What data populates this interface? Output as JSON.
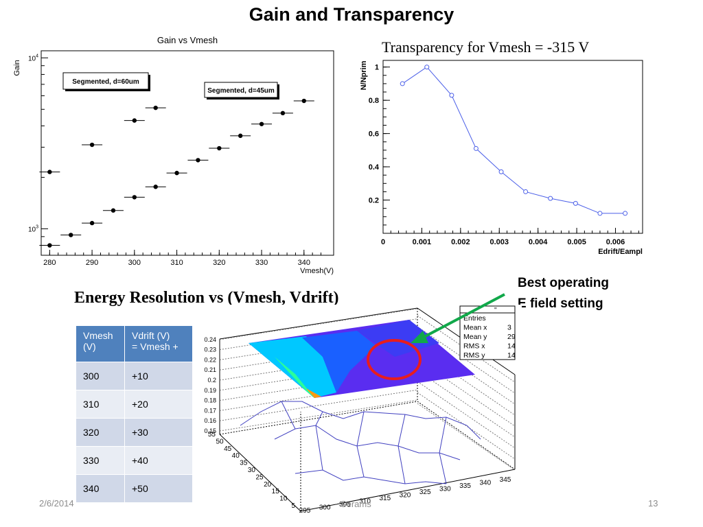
{
  "slide": {
    "title": "Gain  and Transparency",
    "footer_date": "2/6/2014",
    "footer_author": "· Serams",
    "page_number": "13"
  },
  "annotation": {
    "line1": "Best operating",
    "line2": "E field setting",
    "arrow_color": "#11a84a",
    "circle_color": "#e81d1d"
  },
  "chart_data": [
    {
      "type": "scatter",
      "title": "Gain vs Vmesh",
      "xlabel": "Vmesh(V)",
      "ylabel": "Gain",
      "y_scale": "log",
      "xlim": [
        278,
        347
      ],
      "ylim": [
        700,
        11000
      ],
      "x_ticks": [
        280,
        290,
        300,
        310,
        320,
        330,
        340
      ],
      "y_tick_labels": {
        "base": "10",
        "exponents": [
          "3",
          "4"
        ]
      },
      "series": [
        {
          "name": "Segmented, d=60um",
          "x": [
            280,
            290,
            300,
            305
          ],
          "y": [
            2150,
            3100,
            4300,
            5100
          ]
        },
        {
          "name": "Segmented, d=45um",
          "x": [
            280,
            285,
            290,
            295,
            300,
            305,
            310,
            315,
            320,
            325,
            330,
            335,
            340
          ],
          "y": [
            800,
            920,
            1080,
            1280,
            1530,
            1760,
            2120,
            2520,
            2960,
            3500,
            4100,
            4750,
            5600
          ]
        }
      ],
      "marker_color": "#000000"
    },
    {
      "type": "line",
      "title": "Transparency for Vmesh = -315 V",
      "xlabel": "Edrift/Eampl",
      "ylabel": "N/Nprim",
      "xlim": [
        0,
        0.0067
      ],
      "ylim": [
        0,
        1.04
      ],
      "x_ticks": [
        "0",
        "0.001",
        "0.002",
        "0.003",
        "0.004",
        "0.005",
        "0.006"
      ],
      "y_ticks": [
        "0.2",
        "0.4",
        "0.6",
        "0.8",
        "1"
      ],
      "series": [
        {
          "x": [
            0.0005,
            0.00113,
            0.00177,
            0.0024,
            0.00305,
            0.00368,
            0.00432,
            0.00497,
            0.0056,
            0.00625
          ],
          "y": [
            0.9,
            1.0,
            0.83,
            0.51,
            0.37,
            0.25,
            0.21,
            0.18,
            0.12,
            0.12
          ]
        }
      ],
      "line_color": "#4a5ee8"
    },
    {
      "type": "heatmap",
      "title": "Energy Resolution vs (Vmesh, Vdrift)",
      "x_ticks": [
        "295",
        "300",
        "305",
        "310",
        "315",
        "320",
        "325",
        "330",
        "335",
        "340",
        "345"
      ],
      "y_ticks": [
        "5",
        "10",
        "15",
        "20",
        "25",
        "30",
        "35",
        "40",
        "45",
        "50",
        "55"
      ],
      "z_ticks": [
        "0.15",
        "0.16",
        "0.17",
        "0.18",
        "0.19",
        "0.2",
        "0.21",
        "0.22",
        "0.23",
        "0.24"
      ],
      "zlim": [
        0.15,
        0.24
      ],
      "stats_box": {
        "header": "\"",
        "rows": [
          {
            "label": "Entries",
            "value": ""
          },
          {
            "label": "Mean x",
            "value": "3"
          },
          {
            "label": "Mean y",
            "value": "29"
          },
          {
            "label": "RMS x",
            "value": "14"
          },
          {
            "label": "RMS y",
            "value": "14"
          }
        ]
      }
    }
  ],
  "table": {
    "headers": [
      [
        "Vmesh",
        "(V)"
      ],
      [
        "Vdrift (V)",
        "= Vmesh +"
      ]
    ],
    "rows": [
      [
        "300",
        "+10"
      ],
      [
        "310",
        "+20"
      ],
      [
        "320",
        "+30"
      ],
      [
        "330",
        "+40"
      ],
      [
        "340",
        "+50"
      ]
    ],
    "header_color": "#4f81bd"
  }
}
